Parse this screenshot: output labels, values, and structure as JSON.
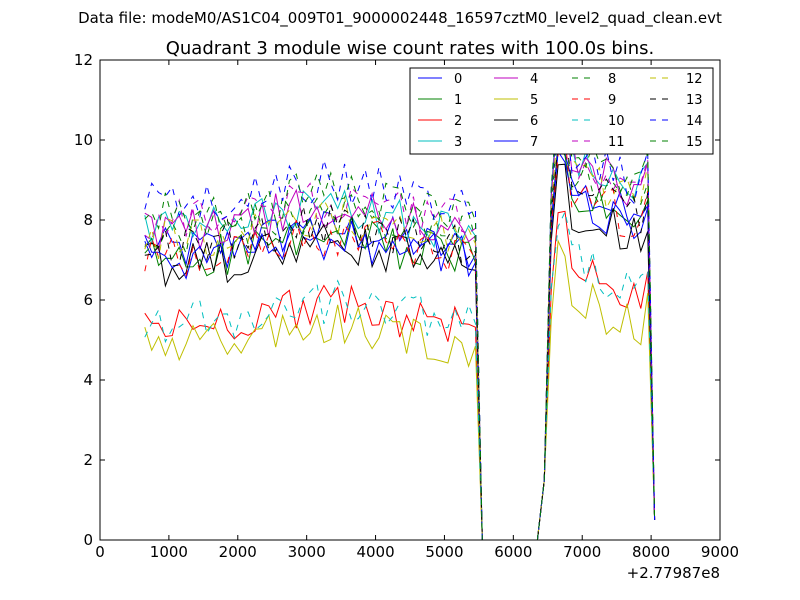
{
  "chart_data": {
    "type": "line",
    "suptitle": "Data file: modeM0/AS1C04_009T01_9000002448_16597cztM0_level2_quad_clean.evt",
    "title": "Quadrant 3 module wise count rates with 100.0s bins.",
    "xlabel": "",
    "ylabel": "",
    "x_offset_label": "+2.77987e8",
    "xlim": [
      0,
      9000
    ],
    "ylim": [
      0,
      12
    ],
    "xticks": [
      0,
      1000,
      2000,
      3000,
      4000,
      5000,
      6000,
      7000,
      8000,
      9000
    ],
    "yticks": [
      0,
      2,
      4,
      6,
      8,
      10,
      12
    ],
    "legend_position": "top-right",
    "legend_columns": 4,
    "x": [
      650,
      750,
      850,
      950,
      1050,
      1150,
      1250,
      1350,
      1450,
      1550,
      1650,
      1750,
      1850,
      1950,
      2050,
      2150,
      2250,
      2350,
      2450,
      2550,
      2650,
      2750,
      2850,
      2950,
      3050,
      3150,
      3250,
      3350,
      3450,
      3550,
      3650,
      3750,
      3850,
      3950,
      4050,
      4150,
      4250,
      4350,
      4450,
      4550,
      4650,
      4750,
      4850,
      4950,
      5050,
      5150,
      5250,
      5350,
      5450,
      5550,
      5650,
      5750,
      5850,
      5950,
      6050,
      6150,
      6250,
      6350,
      6450,
      6550,
      6650,
      6750,
      6850,
      6950,
      7050,
      7150,
      7250,
      7350,
      7450,
      7550,
      7650,
      7750,
      7850,
      7950,
      8050
    ],
    "series": [
      {
        "name": "0",
        "color": "#0000ff",
        "dash": "solid",
        "level": 7.5,
        "tail": 8.8
      },
      {
        "name": "1",
        "color": "#008000",
        "dash": "solid",
        "level": 7.3,
        "tail": 8.6
      },
      {
        "name": "2",
        "color": "#ff0000",
        "dash": "solid",
        "level": 5.6,
        "tail": 6.9
      },
      {
        "name": "3",
        "color": "#00bfbf",
        "dash": "solid",
        "level": 8.0,
        "tail": 9.7
      },
      {
        "name": "4",
        "color": "#bf00bf",
        "dash": "solid",
        "level": 8.0,
        "tail": 9.5
      },
      {
        "name": "5",
        "color": "#bfbf00",
        "dash": "solid",
        "level": 5.1,
        "tail": 6.1
      },
      {
        "name": "6",
        "color": "#000000",
        "dash": "solid",
        "level": 7.1,
        "tail": 8.3
      },
      {
        "name": "7",
        "color": "#0000ff",
        "dash": "solid",
        "level": 7.3,
        "tail": 8.6
      },
      {
        "name": "8",
        "color": "#008000",
        "dash": "dashed",
        "level": 7.9,
        "tail": 9.2
      },
      {
        "name": "9",
        "color": "#ff0000",
        "dash": "dashed",
        "level": 7.4,
        "tail": 8.7
      },
      {
        "name": "10",
        "color": "#00bfbf",
        "dash": "dashed",
        "level": 5.7,
        "tail": 7.0
      },
      {
        "name": "11",
        "color": "#bf00bf",
        "dash": "dashed",
        "level": 8.2,
        "tail": 9.6
      },
      {
        "name": "12",
        "color": "#bfbf00",
        "dash": "dashed",
        "level": 7.8,
        "tail": 9.2
      },
      {
        "name": "13",
        "color": "#000000",
        "dash": "dashed",
        "level": 7.6,
        "tail": 9.0
      },
      {
        "name": "14",
        "color": "#0000ff",
        "dash": "dashed",
        "level": 8.7,
        "tail": 9.7
      },
      {
        "name": "15",
        "color": "#008000",
        "dash": "dashed",
        "level": 8.4,
        "tail": 9.8
      }
    ]
  }
}
